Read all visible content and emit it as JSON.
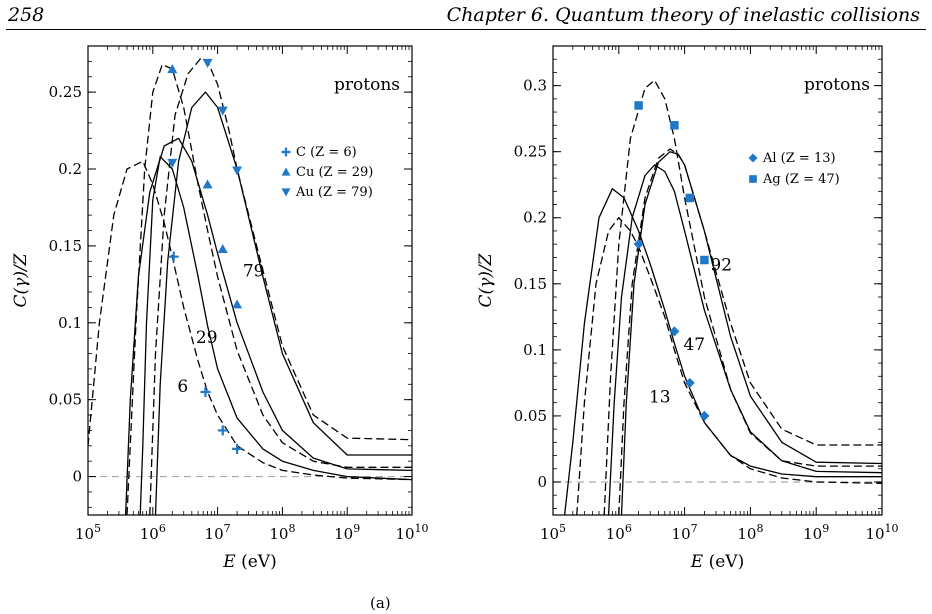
{
  "page": {
    "page_number": "258",
    "chapter_title": "Chapter 6.  Quantum theory of inelastic collisions"
  },
  "caption": {
    "text": "(a)"
  },
  "chart_data": [
    {
      "type": "line",
      "xscale": "log",
      "xlim": [
        100000,
        10000000000
      ],
      "ylim": [
        -0.025,
        0.28
      ],
      "xlabel_var": "E",
      "xlabel_unit": " (eV)",
      "ylabel": "C(γ)/Z",
      "x_ticks": [
        {
          "value": 100000,
          "base": "10",
          "exp": "5"
        },
        {
          "value": 1000000,
          "base": "10",
          "exp": "6"
        },
        {
          "value": 10000000,
          "base": "10",
          "exp": "7"
        },
        {
          "value": 100000000,
          "base": "10",
          "exp": "8"
        },
        {
          "value": 1000000000,
          "base": "10",
          "exp": "9"
        },
        {
          "value": 10000000000,
          "base": "10",
          "exp": "10"
        }
      ],
      "y_ticks": [
        {
          "value": 0,
          "label": "0"
        },
        {
          "value": 0.05,
          "label": "0.05"
        },
        {
          "value": 0.1,
          "label": "0.1"
        },
        {
          "value": 0.15,
          "label": "0.15"
        },
        {
          "value": 0.2,
          "label": "0.2"
        },
        {
          "value": 0.25,
          "label": "0.25"
        }
      ],
      "inset_label": "protons",
      "curve_labels": [
        {
          "text": "79",
          "x": 36000000,
          "y": 0.13
        },
        {
          "text": "29",
          "x": 6800000,
          "y": 0.087
        },
        {
          "text": "6",
          "x": 2900000,
          "y": 0.055
        }
      ],
      "legend": [
        {
          "symbol": "plus",
          "text": "C (Z = 6)"
        },
        {
          "symbol": "triangle-up",
          "text": "Cu (Z = 29)"
        },
        {
          "symbol": "triangle-down",
          "text": "Au (Z = 79)"
        }
      ],
      "series": [
        {
          "style": "solid",
          "x": [
            640000,
            700000,
            800000,
            1000000,
            1300000,
            2000000,
            3000000,
            5000000,
            7000000,
            10000000,
            20000000,
            50000000,
            100000000,
            300000000,
            1000000000,
            10000000000
          ],
          "y": [
            -0.025,
            0.02,
            0.1,
            0.18,
            0.208,
            0.2,
            0.175,
            0.13,
            0.098,
            0.07,
            0.038,
            0.018,
            0.01,
            0.004,
            0.0,
            -0.002
          ]
        },
        {
          "style": "solid",
          "x": [
            380000,
            450000,
            600000,
            900000,
            1500000,
            2500000,
            4000000,
            7000000,
            10000000,
            20000000,
            50000000,
            100000000,
            300000000,
            1000000000,
            10000000000
          ],
          "y": [
            -0.025,
            0.05,
            0.13,
            0.185,
            0.215,
            0.22,
            0.205,
            0.17,
            0.145,
            0.1,
            0.055,
            0.03,
            0.012,
            0.005,
            0.004
          ]
        },
        {
          "style": "solid",
          "x": [
            1100000,
            1300000,
            1700000,
            2500000,
            4000000,
            6500000,
            10000000,
            20000000,
            50000000,
            100000000,
            300000000,
            1000000000,
            10000000000
          ],
          "y": [
            -0.025,
            0.06,
            0.14,
            0.205,
            0.24,
            0.25,
            0.24,
            0.2,
            0.13,
            0.08,
            0.035,
            0.014,
            0.014
          ]
        },
        {
          "style": "dashed",
          "x": [
            100000,
            150000,
            250000,
            400000,
            700000,
            1000000,
            1500000,
            2000000,
            3000000,
            5000000,
            7000000,
            10000000,
            20000000,
            50000000,
            100000000,
            300000000,
            1000000000,
            10000000000
          ],
          "y": [
            0.02,
            0.1,
            0.17,
            0.2,
            0.205,
            0.19,
            0.165,
            0.143,
            0.11,
            0.075,
            0.055,
            0.04,
            0.02,
            0.009,
            0.004,
            0.001,
            -0.001,
            -0.002
          ]
        },
        {
          "style": "dashed",
          "x": [
            400000,
            550000,
            750000,
            1000000,
            1400000,
            2000000,
            3000000,
            5000000,
            7000000,
            10000000,
            20000000,
            50000000,
            100000000,
            300000000,
            1000000000,
            10000000000
          ],
          "y": [
            -0.025,
            0.1,
            0.2,
            0.25,
            0.268,
            0.265,
            0.24,
            0.19,
            0.16,
            0.13,
            0.082,
            0.04,
            0.022,
            0.01,
            0.006,
            0.006
          ]
        },
        {
          "style": "dashed",
          "x": [
            900000,
            1100000,
            1500000,
            2200000,
            3500000,
            5500000,
            7000000,
            10000000,
            15000000,
            20000000,
            40000000,
            100000000,
            300000000,
            1000000000,
            10000000000
          ],
          "y": [
            -0.025,
            0.08,
            0.17,
            0.235,
            0.262,
            0.272,
            0.27,
            0.255,
            0.225,
            0.2,
            0.15,
            0.085,
            0.04,
            0.025,
            0.024
          ]
        }
      ],
      "markers": [
        {
          "symbol": "plus",
          "points": [
            [
              2100000,
              0.143
            ],
            [
              6500000,
              0.055
            ],
            [
              12000000,
              0.03
            ],
            [
              20000000,
              0.018
            ]
          ]
        },
        {
          "symbol": "triangle-up",
          "points": [
            [
              2000000,
              0.265
            ],
            [
              7000000,
              0.19
            ],
            [
              12000000,
              0.148
            ],
            [
              20000000,
              0.112
            ]
          ]
        },
        {
          "symbol": "triangle-down",
          "points": [
            [
              2000000,
              0.204
            ],
            [
              7000000,
              0.269
            ],
            [
              12000000,
              0.238
            ],
            [
              20000000,
              0.199
            ]
          ]
        }
      ],
      "colors": {
        "marker": "#1f78c8",
        "zero_line": "#aaaaaa"
      }
    },
    {
      "type": "line",
      "xscale": "log",
      "xlim": [
        100000,
        10000000000
      ],
      "ylim": [
        -0.025,
        0.33
      ],
      "xlabel_var": "E",
      "xlabel_unit": " (eV)",
      "ylabel": "C(γ)/Z",
      "x_ticks": [
        {
          "value": 100000,
          "base": "10",
          "exp": "5"
        },
        {
          "value": 1000000,
          "base": "10",
          "exp": "6"
        },
        {
          "value": 10000000,
          "base": "10",
          "exp": "7"
        },
        {
          "value": 100000000,
          "base": "10",
          "exp": "8"
        },
        {
          "value": 1000000000,
          "base": "10",
          "exp": "9"
        },
        {
          "value": 10000000000,
          "base": "10",
          "exp": "10"
        }
      ],
      "y_ticks": [
        {
          "value": 0,
          "label": "0"
        },
        {
          "value": 0.05,
          "label": "0.05"
        },
        {
          "value": 0.1,
          "label": "0.1"
        },
        {
          "value": 0.15,
          "label": "0.15"
        },
        {
          "value": 0.2,
          "label": "0.2"
        },
        {
          "value": 0.25,
          "label": "0.25"
        },
        {
          "value": 0.3,
          "label": "0.3"
        }
      ],
      "inset_label": "protons",
      "curve_labels": [
        {
          "text": "92",
          "x": 36000000,
          "y": 0.16
        },
        {
          "text": "47",
          "x": 14000000,
          "y": 0.1
        },
        {
          "text": "13",
          "x": 4200000,
          "y": 0.06
        }
      ],
      "legend": [
        {
          "symbol": "diamond",
          "text": "Al (Z = 13)"
        },
        {
          "symbol": "square",
          "text": "Ag (Z = 47)"
        }
      ],
      "series": [
        {
          "style": "solid",
          "x": [
            150000,
            200000,
            300000,
            500000,
            800000,
            1200000,
            2000000,
            3000000,
            5000000,
            7000000,
            10000000,
            20000000,
            50000000,
            100000000,
            300000000,
            1000000000,
            10000000000
          ],
          "y": [
            -0.025,
            0.03,
            0.12,
            0.2,
            0.222,
            0.215,
            0.19,
            0.165,
            0.13,
            0.105,
            0.08,
            0.045,
            0.02,
            0.012,
            0.006,
            0.004,
            0.004
          ]
        },
        {
          "style": "solid",
          "x": [
            700000,
            850000,
            1100000,
            1600000,
            2500000,
            3500000,
            5000000,
            7000000,
            10000000,
            20000000,
            50000000,
            100000000,
            300000000,
            1000000000,
            10000000000
          ],
          "y": [
            -0.025,
            0.06,
            0.14,
            0.2,
            0.232,
            0.24,
            0.235,
            0.22,
            0.19,
            0.13,
            0.07,
            0.038,
            0.016,
            0.008,
            0.007
          ]
        },
        {
          "style": "solid",
          "x": [
            1100000,
            1300000,
            1700000,
            2500000,
            4000000,
            6000000,
            8000000,
            10000000,
            20000000,
            50000000,
            100000000,
            300000000,
            1000000000,
            10000000000
          ],
          "y": [
            -0.025,
            0.06,
            0.15,
            0.21,
            0.242,
            0.25,
            0.248,
            0.24,
            0.19,
            0.11,
            0.065,
            0.03,
            0.015,
            0.014
          ]
        },
        {
          "style": "dashed",
          "x": [
            230000,
            300000,
            450000,
            700000,
            1000000,
            1500000,
            2000000,
            3000000,
            5000000,
            7000000,
            10000000,
            20000000,
            50000000,
            100000000,
            300000000,
            1000000000,
            10000000000
          ],
          "y": [
            -0.025,
            0.06,
            0.15,
            0.19,
            0.2,
            0.19,
            0.178,
            0.155,
            0.125,
            0.1,
            0.075,
            0.045,
            0.02,
            0.01,
            0.003,
            0.0,
            -0.001
          ]
        },
        {
          "style": "dashed",
          "x": [
            600000,
            750000,
            1000000,
            1500000,
            2500000,
            3500000,
            5000000,
            7000000,
            10000000,
            20000000,
            50000000,
            100000000,
            300000000,
            1000000000,
            10000000000
          ],
          "y": [
            -0.025,
            0.08,
            0.18,
            0.26,
            0.298,
            0.304,
            0.29,
            0.26,
            0.215,
            0.14,
            0.07,
            0.037,
            0.016,
            0.012,
            0.012
          ]
        },
        {
          "style": "dashed",
          "x": [
            1000000,
            1200000,
            1600000,
            2500000,
            4000000,
            6000000,
            8000000,
            10000000,
            20000000,
            50000000,
            100000000,
            300000000,
            1000000000,
            10000000000
          ],
          "y": [
            -0.025,
            0.06,
            0.15,
            0.215,
            0.245,
            0.252,
            0.248,
            0.24,
            0.19,
            0.12,
            0.075,
            0.04,
            0.028,
            0.028
          ]
        }
      ],
      "markers": [
        {
          "symbol": "diamond",
          "points": [
            [
              2000000,
              0.18
            ],
            [
              7000000,
              0.114
            ],
            [
              12000000,
              0.075
            ],
            [
              20000000,
              0.05
            ]
          ]
        },
        {
          "symbol": "square",
          "points": [
            [
              2000000,
              0.285
            ],
            [
              7000000,
              0.27
            ],
            [
              12000000,
              0.215
            ],
            [
              20000000,
              0.168
            ]
          ]
        }
      ],
      "colors": {
        "marker": "#1f78c8",
        "zero_line": "#aaaaaa"
      }
    }
  ]
}
